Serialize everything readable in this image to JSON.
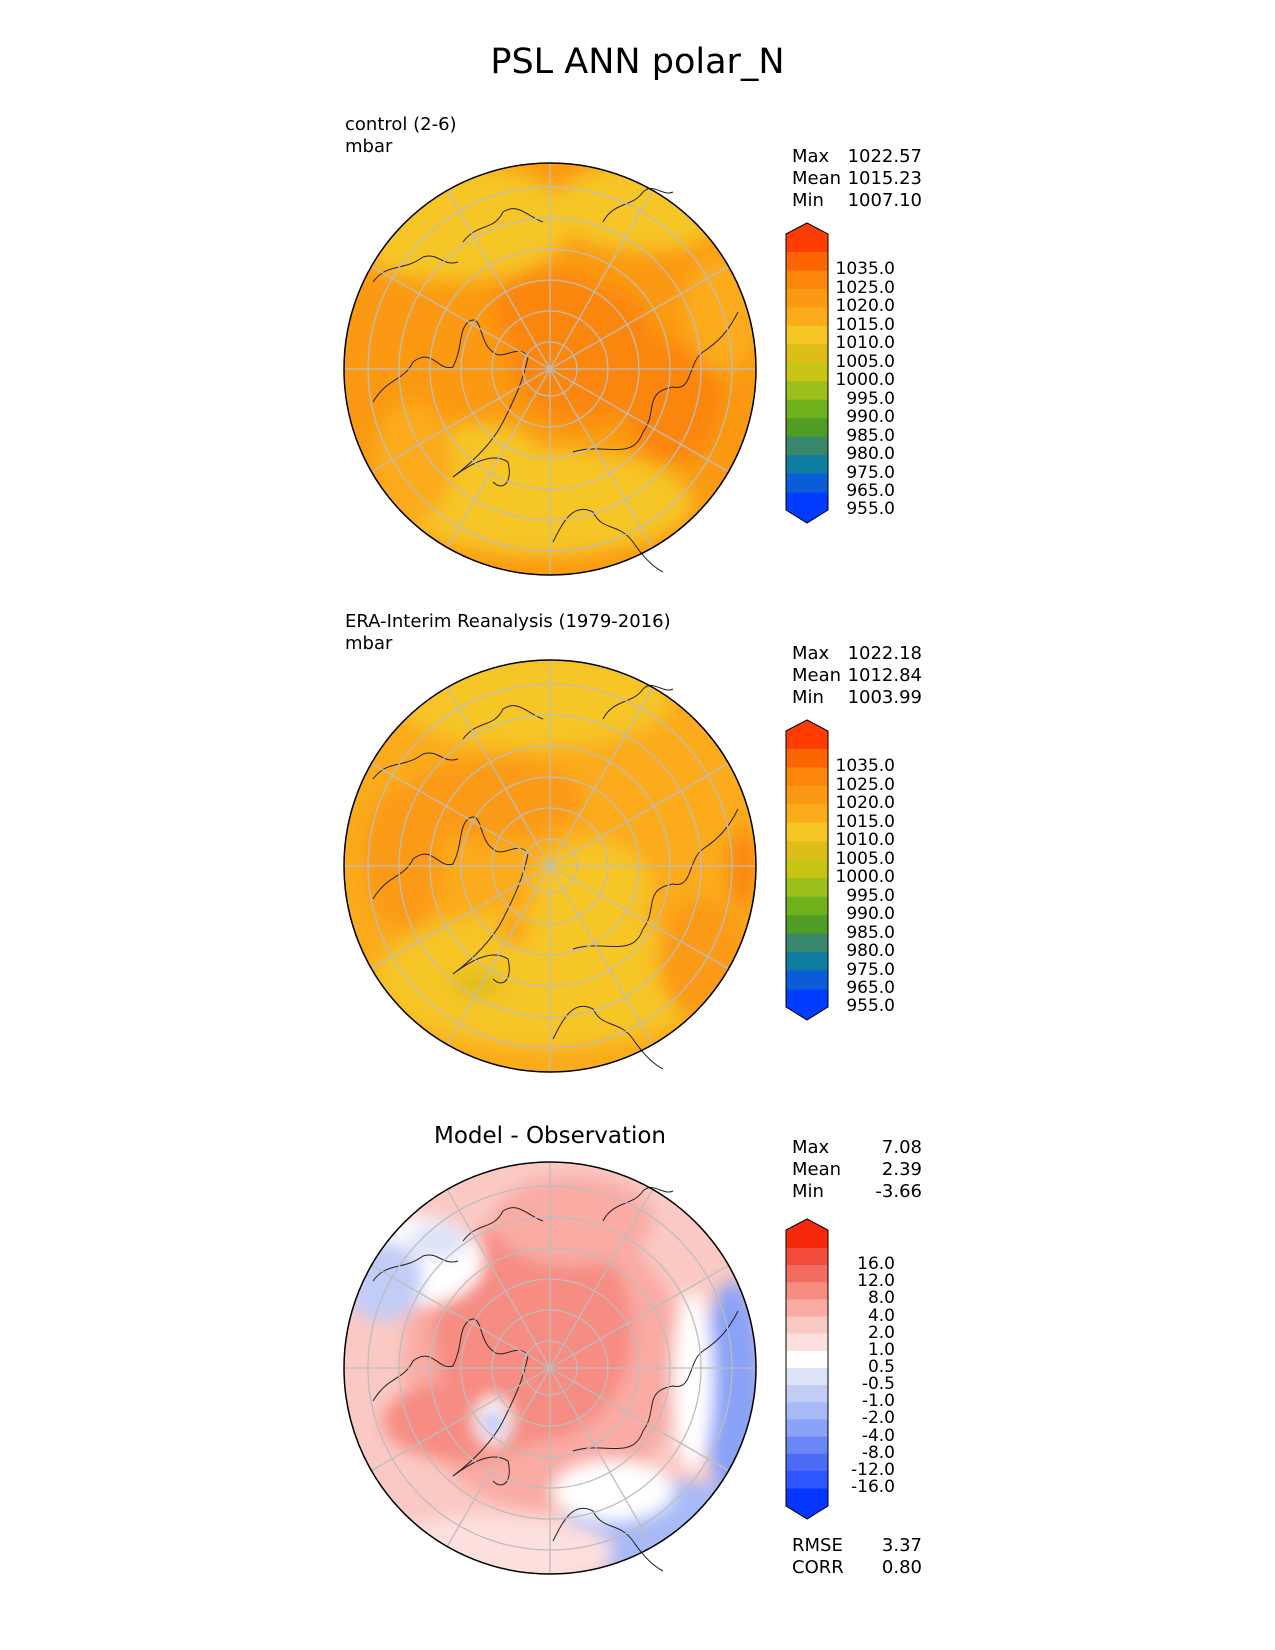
{
  "title": "PSL ANN polar_N",
  "colors": {
    "psl_bins": [
      "#003cff",
      "#0a5cd8",
      "#0e7da0",
      "#37886a",
      "#4f9d24",
      "#6fb11a",
      "#9cbf1b",
      "#c7c416",
      "#ddbd1c",
      "#f6c526",
      "#fbab1c",
      "#fb9a12",
      "#fb8609",
      "#fd6503",
      "#ff3c02"
    ],
    "diff_bins": [
      "#0536ff",
      "#2e55ff",
      "#4b6bf7",
      "#6b87f7",
      "#8aa2f7",
      "#a8b9f7",
      "#c2ccf7",
      "#dde3f8",
      "#ffffff",
      "#fde0de",
      "#fbc9c4",
      "#f9aba4",
      "#f68c82",
      "#f46c60",
      "#f24b3a",
      "#f62a0a"
    ]
  },
  "panels": [
    {
      "subtitle_line1": "control (2-6)",
      "subtitle_line2": "mbar",
      "stats": {
        "max_label": "Max",
        "max": "1022.57",
        "mean_label": "Mean",
        "mean": "1015.23",
        "min_label": "Min",
        "min": "1007.10"
      },
      "colorbar_labels": [
        "1035.0",
        "1025.0",
        "1020.0",
        "1015.0",
        "1010.0",
        "1005.0",
        "1000.0",
        "995.0",
        "990.0",
        "985.0",
        "980.0",
        "975.0",
        "965.0",
        "955.0"
      ]
    },
    {
      "subtitle_line1": "ERA-Interim Reanalysis (1979-2016)",
      "subtitle_line2": "mbar",
      "stats": {
        "max_label": "Max",
        "max": "1022.18",
        "mean_label": "Mean",
        "mean": "1012.84",
        "min_label": "Min",
        "min": "1003.99"
      },
      "colorbar_labels": [
        "1035.0",
        "1025.0",
        "1020.0",
        "1015.0",
        "1010.0",
        "1005.0",
        "1000.0",
        "995.0",
        "990.0",
        "985.0",
        "980.0",
        "975.0",
        "965.0",
        "955.0"
      ]
    },
    {
      "title": "Model - Observation",
      "stats": {
        "max_label": "Max",
        "max": "7.08",
        "mean_label": "Mean",
        "mean": "2.39",
        "min_label": "Min",
        "min": "-3.66"
      },
      "colorbar_labels": [
        "16.0",
        "12.0",
        "8.0",
        "4.0",
        "2.0",
        "1.0",
        "0.5",
        "-0.5",
        "-1.0",
        "-2.0",
        "-4.0",
        "-8.0",
        "-12.0",
        "-16.0"
      ],
      "metrics": {
        "rmse_label": "RMSE",
        "rmse": "3.37",
        "corr_label": "CORR",
        "corr": "0.80"
      }
    }
  ]
}
